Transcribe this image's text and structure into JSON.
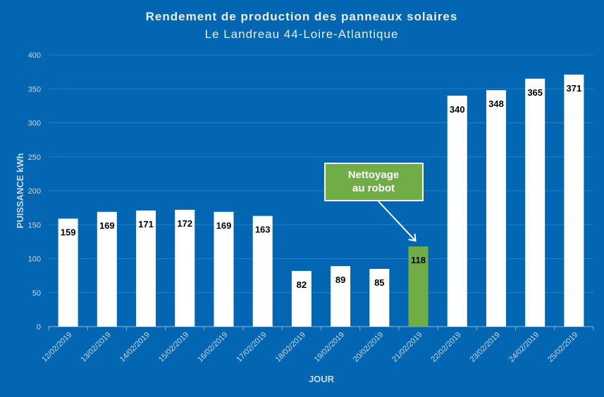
{
  "chart_data": {
    "type": "bar",
    "title": "Rendement de production  des panneaux solaires",
    "subtitle": "Le Landreau  44-Loire-Atlantique",
    "xlabel": "JOUR",
    "ylabel": "PUISSANCE kWh",
    "ylim": [
      0,
      400
    ],
    "yticks": [
      0,
      50,
      100,
      150,
      200,
      250,
      300,
      350,
      400
    ],
    "grid": true,
    "categories": [
      "12/02/2019",
      "13/02/2019",
      "14/02/2019",
      "15/02/2019",
      "16/02/2019",
      "17/02/2019",
      "18/02/2019",
      "19/02/2019",
      "20/02/2019",
      "21/02/2019",
      "22/02/2019",
      "23/02/2019",
      "24/02/2019",
      "25/02/2019"
    ],
    "values": [
      159,
      169,
      171,
      172,
      169,
      163,
      82,
      89,
      85,
      118,
      340,
      348,
      365,
      371
    ],
    "highlight_index": 9,
    "colors": {
      "bar": "#ffffff",
      "highlight": "#70ad47",
      "background": "#0366b2",
      "grid": "#2b7cc0"
    },
    "annotation": {
      "lines": [
        "Nettoyage",
        "au robot"
      ],
      "target_category": "21/02/2019"
    }
  }
}
